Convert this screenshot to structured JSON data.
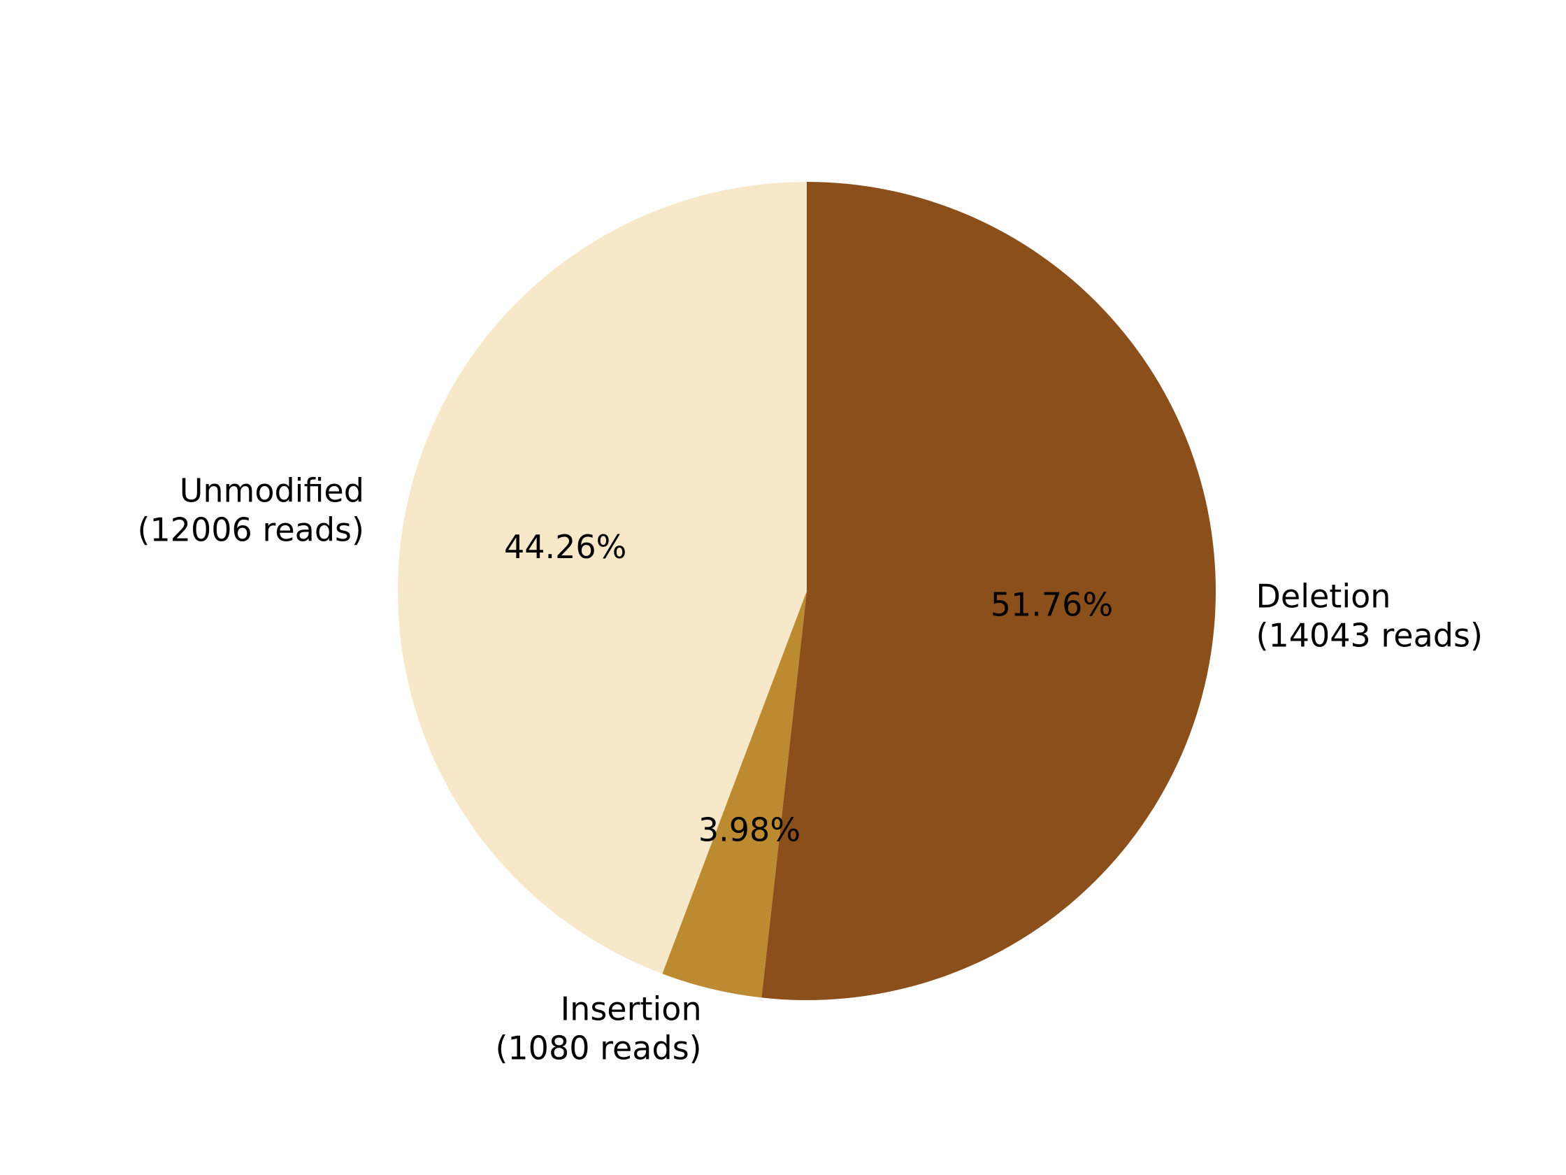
{
  "chart_data": {
    "type": "pie",
    "start": "top, clockwise",
    "slices": [
      {
        "category": "Deletion",
        "reads_label": "(14043 reads)",
        "reads": 14043,
        "percent_label": "51.76%",
        "percent": 51.76,
        "color": "#8B4F1C"
      },
      {
        "category": "Insertion",
        "reads_label": "(1080 reads)",
        "reads": 1080,
        "percent_label": "3.98%",
        "percent": 3.98,
        "color": "#BC8A31"
      },
      {
        "category": "Unmodified",
        "reads_label": "(12006 reads)",
        "reads": 12006,
        "percent_label": "44.26%",
        "percent": 44.26,
        "color": "#F7E8C9"
      }
    ]
  }
}
